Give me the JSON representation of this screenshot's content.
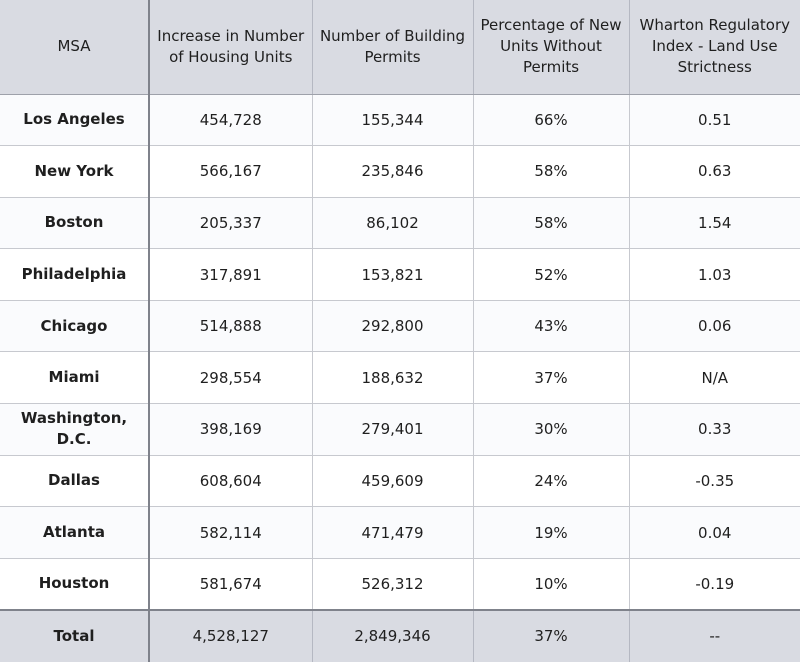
{
  "table": {
    "headers": [
      "MSA",
      "Increase in Number of Housing Units",
      "Number of Building Permits",
      "Percentage of New Units Without Permits",
      "Wharton Regulatory Index - Land Use Strictness"
    ],
    "rows": [
      [
        "Los Angeles",
        "454,728",
        "155,344",
        "66%",
        "0.51"
      ],
      [
        "New York",
        "566,167",
        "235,846",
        "58%",
        "0.63"
      ],
      [
        "Boston",
        "205,337",
        "86,102",
        "58%",
        "1.54"
      ],
      [
        "Philadelphia",
        "317,891",
        "153,821",
        "52%",
        "1.03"
      ],
      [
        "Chicago",
        "514,888",
        "292,800",
        "43%",
        "0.06"
      ],
      [
        "Miami",
        "298,554",
        "188,632",
        "37%",
        "N/A"
      ],
      [
        "Washington, D.C.",
        "398,169",
        "279,401",
        "30%",
        "0.33"
      ],
      [
        "Dallas",
        "608,604",
        "459,609",
        "24%",
        "-0.35"
      ],
      [
        "Atlanta",
        "582,114",
        "471,479",
        "19%",
        "0.04"
      ],
      [
        "Houston",
        "581,674",
        "526,312",
        "10%",
        "-0.19"
      ]
    ],
    "total": [
      "Total",
      "4,528,127",
      "2,849,346",
      "37%",
      "--"
    ]
  }
}
